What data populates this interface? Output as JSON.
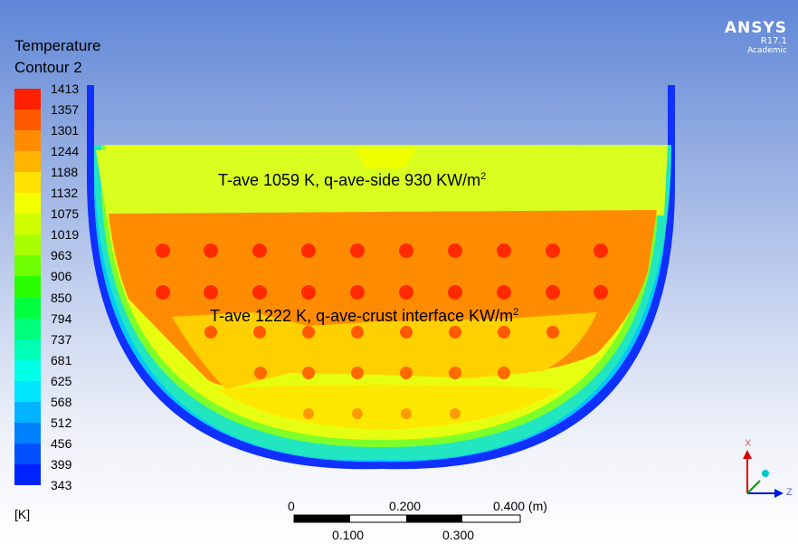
{
  "legend": {
    "title_line1": "Temperature",
    "title_line2": "Contour 2",
    "unit": "[K]",
    "ticks": [
      "1413",
      "1357",
      "1301",
      "1244",
      "1188",
      "1132",
      "1075",
      "1019",
      "963",
      "906",
      "850",
      "794",
      "737",
      "681",
      "625",
      "568",
      "512",
      "456",
      "399",
      "343"
    ],
    "colors": [
      "#ff2000",
      "#ff5a00",
      "#ff8c00",
      "#ffb400",
      "#ffe100",
      "#f4ff00",
      "#d2ff00",
      "#a8ff00",
      "#6eff00",
      "#2aff00",
      "#00ff3c",
      "#00ff7a",
      "#00ffb4",
      "#00ffe6",
      "#00e6ff",
      "#00b4ff",
      "#0082ff",
      "#0050ff",
      "#0022ff"
    ]
  },
  "branding": {
    "product": "ANSYS",
    "version": "R17.1",
    "edition": "Academic"
  },
  "annotations": {
    "top_text": "T-ave 1059 K, q-ave-side 930 KW/m",
    "top_sup": "2",
    "bottom_text": "T-ave 1222 K, q-ave-crust interface KW/m",
    "bottom_sup": "2"
  },
  "scale_bar": {
    "top_labels": [
      "0",
      "0.200",
      "0.400 (m)"
    ],
    "bottom_labels": [
      "0.100",
      "0.300"
    ]
  },
  "axes": {
    "x_label": "X",
    "z_label": "Z"
  }
}
